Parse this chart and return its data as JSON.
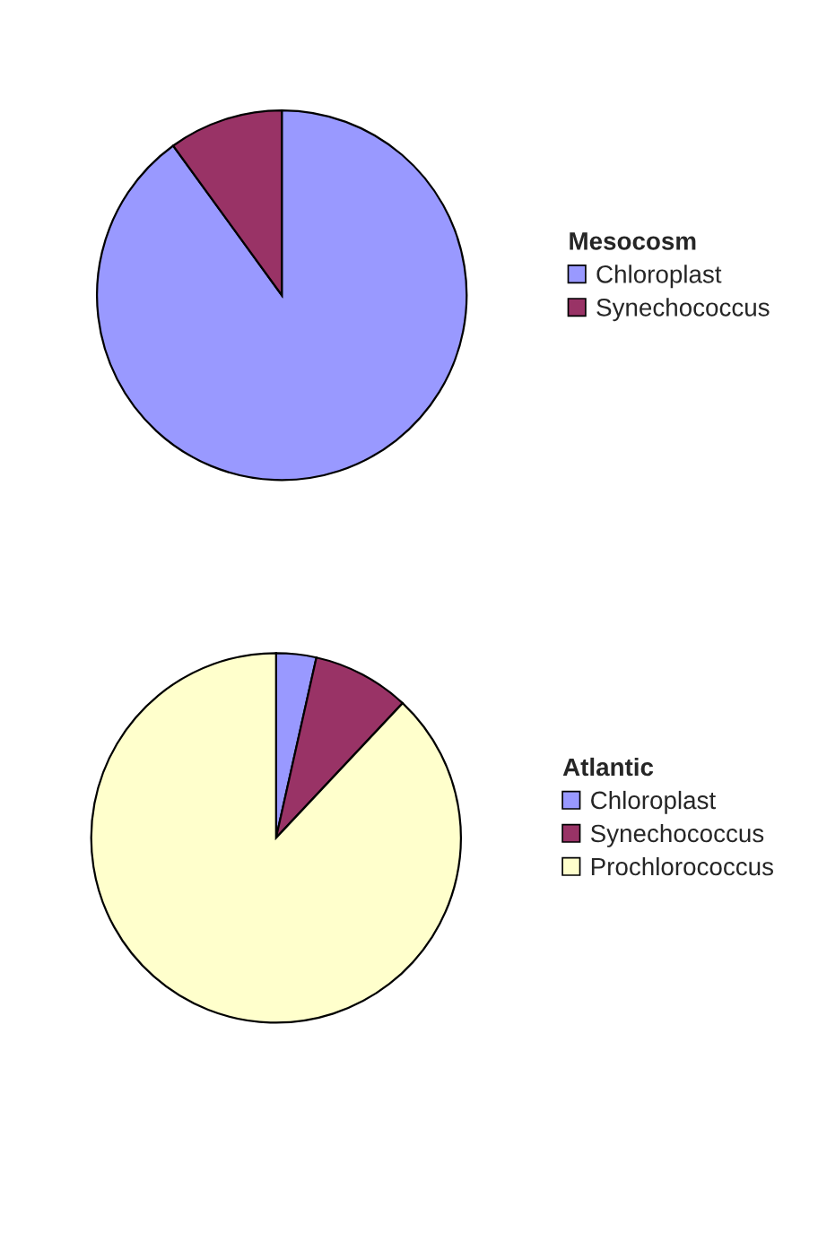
{
  "chart_data": [
    {
      "type": "pie",
      "legend_title": "Mesocosm",
      "categories": [
        "Chloroplast",
        "Synechococcus"
      ],
      "values": [
        90,
        10
      ],
      "colors": [
        "#9999ff",
        "#993366"
      ],
      "legend": "right"
    },
    {
      "type": "pie",
      "legend_title": "Atlantic",
      "categories": [
        "Chloroplast",
        "Synechococcus",
        "Prochlorococcus"
      ],
      "values": [
        3.5,
        8.5,
        88
      ],
      "colors": [
        "#9999ff",
        "#993366",
        "#ffffcc"
      ],
      "legend": "right"
    }
  ]
}
